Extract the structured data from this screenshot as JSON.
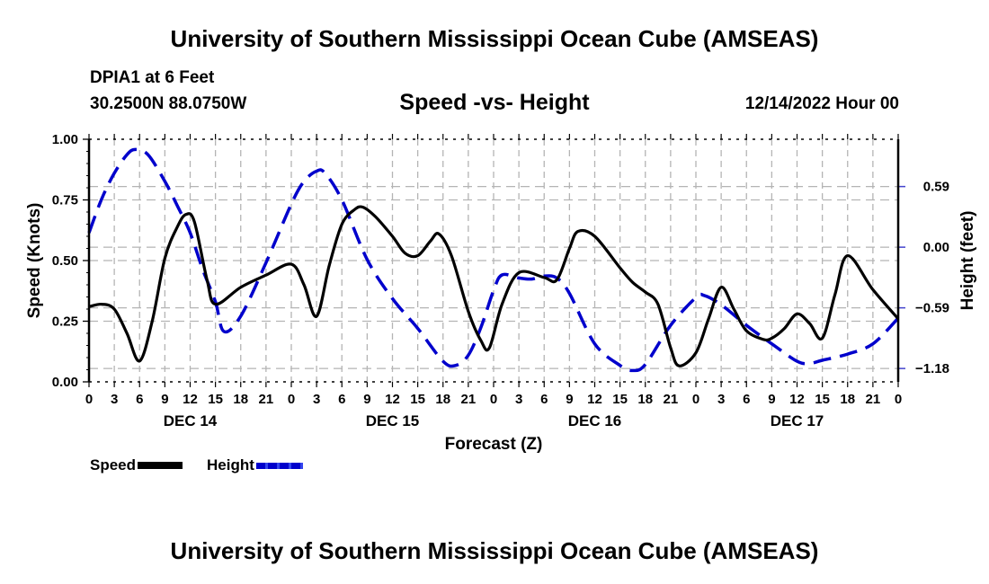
{
  "header": {
    "title": "University of Southern Mississippi Ocean Cube (AMSEAS)",
    "station": "DPIA1 at 6 Feet",
    "coordinates": "30.2500N  88.0750W",
    "subtitle": "Speed -vs- Height",
    "datetime": "12/14/2022 Hour 00"
  },
  "footer": {
    "title": "University of Southern Mississippi Ocean Cube (AMSEAS)"
  },
  "colors": {
    "speed": "#000000",
    "height": "#0000cc",
    "grid": "#b4b4b4"
  },
  "chart_data": {
    "type": "line",
    "title": "Speed -vs- Height",
    "xlabel": "Forecast (Z)",
    "ylabel": "Speed (Knots)",
    "y2label": "Height (feet)",
    "xlim": [
      0,
      96
    ],
    "ylim": [
      0,
      1.0
    ],
    "y2lim": [
      -1.31,
      1.05
    ],
    "grid": true,
    "legend_position": "bottom-left",
    "x_tick_labels": [
      "0",
      "3",
      "6",
      "9",
      "12",
      "15",
      "18",
      "21",
      "0",
      "3",
      "6",
      "9",
      "12",
      "15",
      "18",
      "21",
      "0",
      "3",
      "6",
      "9",
      "12",
      "15",
      "18",
      "21",
      "0",
      "3",
      "6",
      "9",
      "12",
      "15",
      "18",
      "21",
      "0"
    ],
    "day_labels": [
      {
        "label": "DEC 14",
        "hour": 12
      },
      {
        "label": "DEC 15",
        "hour": 36
      },
      {
        "label": "DEC 16",
        "hour": 60
      },
      {
        "label": "DEC 17",
        "hour": 84
      }
    ],
    "y_ticks": [
      "0.00",
      "0.25",
      "0.50",
      "0.75",
      "1.00"
    ],
    "y2_ticks": [
      {
        "label": "0.59",
        "value": 0.59
      },
      {
        "label": "0.00",
        "value": 0.0
      },
      {
        "label": "−0.59",
        "value": -0.59
      },
      {
        "label": "−1.18",
        "value": -1.18
      }
    ],
    "series": [
      {
        "name": "Speed",
        "axis": "left",
        "style": "solid",
        "x": [
          0,
          1.5,
          3,
          4.5,
          6,
          7.5,
          9,
          10.5,
          11.5,
          12.5,
          14,
          15,
          18,
          21,
          24,
          25.5,
          27,
          28.5,
          30,
          31.5,
          32.5,
          34,
          36,
          37.5,
          39,
          40.5,
          41.5,
          43,
          45,
          46.5,
          47.5,
          49,
          51,
          54,
          55.5,
          57,
          58,
          60,
          63,
          64.5,
          66,
          67.5,
          69,
          70,
          72,
          73.5,
          75,
          76.5,
          78,
          80,
          81,
          82.5,
          84,
          85.5,
          87,
          88.5,
          90,
          93,
          96
        ],
        "values": [
          0.31,
          0.32,
          0.3,
          0.2,
          0.086,
          0.25,
          0.51,
          0.64,
          0.69,
          0.66,
          0.42,
          0.32,
          0.39,
          0.44,
          0.485,
          0.4,
          0.27,
          0.48,
          0.65,
          0.71,
          0.72,
          0.68,
          0.6,
          0.53,
          0.52,
          0.58,
          0.61,
          0.52,
          0.29,
          0.17,
          0.14,
          0.32,
          0.45,
          0.43,
          0.42,
          0.55,
          0.62,
          0.6,
          0.47,
          0.41,
          0.37,
          0.32,
          0.14,
          0.066,
          0.12,
          0.26,
          0.39,
          0.3,
          0.21,
          0.175,
          0.18,
          0.22,
          0.28,
          0.24,
          0.18,
          0.36,
          0.52,
          0.38,
          0.26
        ]
      },
      {
        "name": "Height",
        "axis": "right",
        "style": "dashed",
        "x": [
          0,
          1.5,
          3,
          4.5,
          5.5,
          7,
          9,
          10.5,
          12,
          13.5,
          15,
          16,
          18,
          21,
          24,
          25.5,
          27,
          28,
          30,
          33,
          36,
          39,
          42,
          43.5,
          45,
          46.5,
          48,
          49,
          51,
          52.5,
          54,
          55.5,
          57,
          60,
          63,
          64.5,
          66,
          69,
          72,
          73,
          75,
          78,
          81,
          84,
          85.5,
          87,
          90,
          93,
          96
        ],
        "values": [
          0.14,
          0.47,
          0.72,
          0.9,
          0.95,
          0.9,
          0.64,
          0.4,
          0.14,
          -0.22,
          -0.53,
          -0.82,
          -0.67,
          -0.15,
          0.42,
          0.64,
          0.74,
          0.72,
          0.46,
          -0.12,
          -0.5,
          -0.79,
          -1.11,
          -1.15,
          -1.05,
          -0.78,
          -0.42,
          -0.27,
          -0.3,
          -0.31,
          -0.28,
          -0.3,
          -0.45,
          -0.94,
          -1.15,
          -1.2,
          -1.14,
          -0.76,
          -0.49,
          -0.47,
          -0.56,
          -0.76,
          -0.94,
          -1.11,
          -1.13,
          -1.1,
          -1.04,
          -0.94,
          -0.69
        ]
      }
    ]
  }
}
